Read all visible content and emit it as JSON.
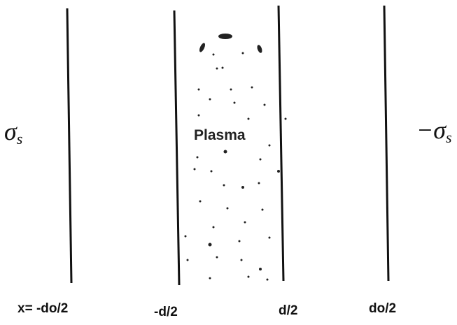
{
  "plasma_label": "Plasma",
  "left_charge": {
    "symbol": "σ",
    "subscript": "s"
  },
  "right_charge": {
    "symbol": "−σ",
    "subscript": "s"
  },
  "positions": [
    "x= -do/2",
    "-d/2",
    "d/2",
    "do/2"
  ]
}
